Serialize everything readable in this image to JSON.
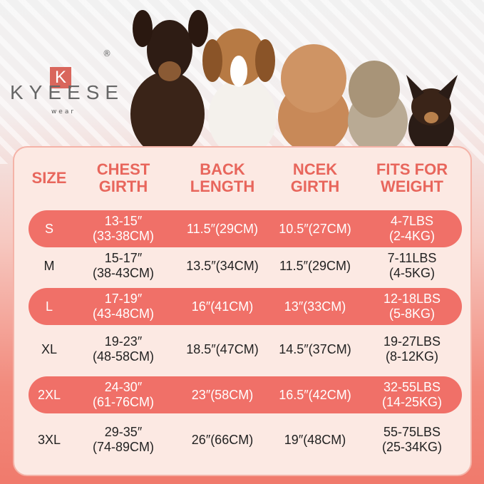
{
  "brand": {
    "logo_letter": "K",
    "name": "KYEESE",
    "sub": "wear",
    "registered": "®"
  },
  "table": {
    "headers": [
      "SIZE",
      "CHEST\nGIRTH",
      "BACK\nLENGTH",
      "NCEK\nGIRTH",
      "FITS FOR\nWEIGHT"
    ],
    "rows": [
      {
        "size": "S",
        "chest": "13-15″\n(33-38CM)",
        "back": "11.5″(29CM)",
        "neck": "10.5″(27CM)",
        "weight": "4-7LBS\n(2-4KG)",
        "highlight": true
      },
      {
        "size": "M",
        "chest": "15-17″\n(38-43CM)",
        "back": "13.5″(34CM)",
        "neck": "11.5″(29CM)",
        "weight": "7-11LBS\n(4-5KG)",
        "highlight": false
      },
      {
        "size": "L",
        "chest": "17-19″\n(43-48CM)",
        "back": "16″(41CM)",
        "neck": "13″(33CM)",
        "weight": "12-18LBS\n(5-8KG)",
        "highlight": true
      },
      {
        "size": "XL",
        "chest": "19-23″\n(48-58CM)",
        "back": "18.5″(47CM)",
        "neck": "14.5″(37CM)",
        "weight": "19-27LBS\n(8-12KG)",
        "highlight": false
      },
      {
        "size": "2XL",
        "chest": "24-30″\n(61-76CM)",
        "back": "23″(58CM)",
        "neck": "16.5″(42CM)",
        "weight": "32-55LBS\n(14-25KG)",
        "highlight": true
      },
      {
        "size": "3XL",
        "chest": "29-35″\n(74-89CM)",
        "back": "26″(66CM)",
        "neck": "19″(48CM)",
        "weight": "55-75LBS\n(25-34KG)",
        "highlight": false
      }
    ]
  },
  "colors": {
    "accent": "#f07068",
    "header_text": "#e8665c",
    "panel": "#fce9e3"
  }
}
